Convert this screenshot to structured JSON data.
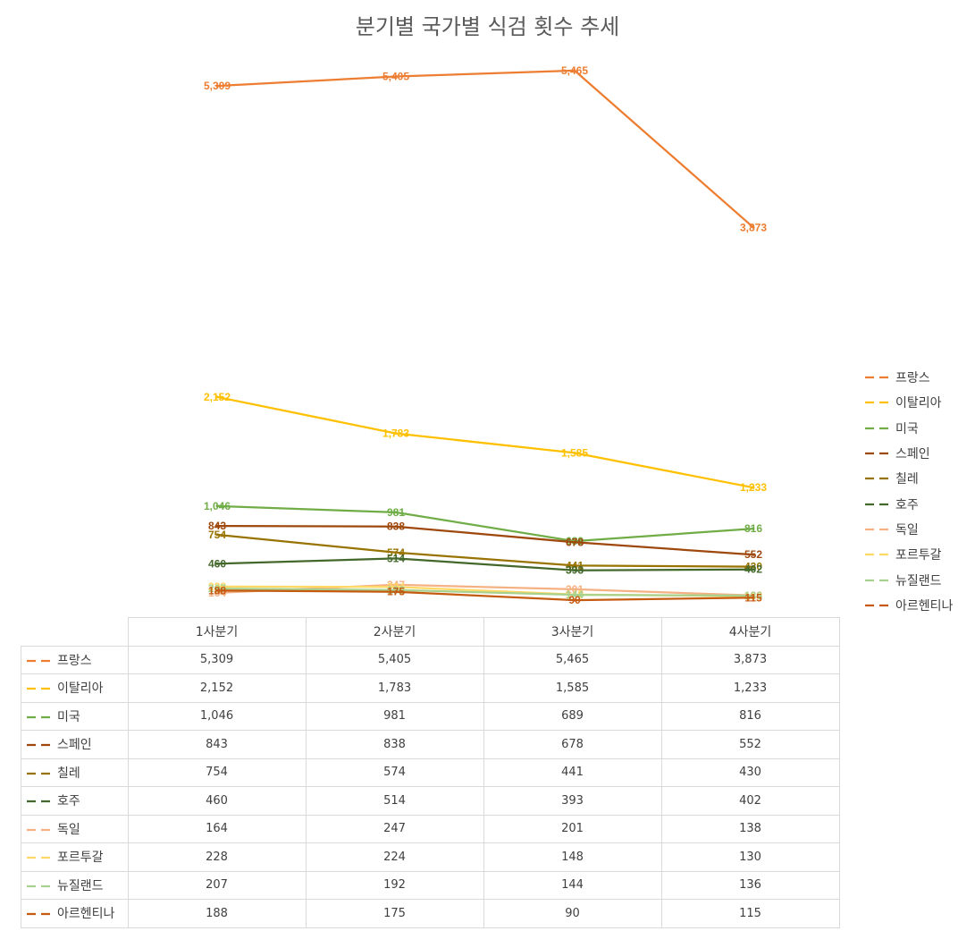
{
  "chart_data": {
    "type": "line",
    "title": "분기별 국가별 식검 횟수 추세",
    "categories": [
      "1사분기",
      "2사분기",
      "3사분기",
      "4사분기"
    ],
    "series": [
      {
        "name": "프랑스",
        "color": "#ED7D31",
        "values": [
          5309,
          5405,
          5465,
          3873
        ],
        "labels": [
          "5,309",
          "5,405",
          "5,465",
          "3,873"
        ]
      },
      {
        "name": "이탈리아",
        "color": "#FFC000",
        "values": [
          2152,
          1783,
          1585,
          1233
        ],
        "labels": [
          "2,152",
          "1,783",
          "1,585",
          "1,233"
        ]
      },
      {
        "name": "미국",
        "color": "#70AD47",
        "values": [
          1046,
          981,
          689,
          816
        ],
        "labels": [
          "1,046",
          "981",
          "689",
          "816"
        ]
      },
      {
        "name": "스페인",
        "color": "#9E480E",
        "values": [
          843,
          838,
          678,
          552
        ],
        "labels": [
          "843",
          "838",
          "678",
          "552"
        ]
      },
      {
        "name": "칠레",
        "color": "#997300",
        "values": [
          754,
          574,
          441,
          430
        ],
        "labels": [
          "754",
          "574",
          "441",
          "430"
        ]
      },
      {
        "name": "호주",
        "color": "#43682B",
        "values": [
          460,
          514,
          393,
          402
        ],
        "labels": [
          "460",
          "514",
          "393",
          "402"
        ]
      },
      {
        "name": "독일",
        "color": "#F4B183",
        "values": [
          164,
          247,
          201,
          138
        ],
        "labels": [
          "164",
          "247",
          "201",
          "138"
        ]
      },
      {
        "name": "포르투갈",
        "color": "#FFD966",
        "values": [
          228,
          224,
          148,
          130
        ],
        "labels": [
          "228",
          "224",
          "148",
          "130"
        ]
      },
      {
        "name": "뉴질랜드",
        "color": "#A9D18E",
        "values": [
          207,
          192,
          144,
          136
        ],
        "labels": [
          "207",
          "192",
          "144",
          "136"
        ]
      },
      {
        "name": "아르헨티나",
        "color": "#C55A11",
        "values": [
          188,
          175,
          90,
          115
        ],
        "labels": [
          "188",
          "175",
          "90",
          "115"
        ]
      }
    ],
    "ylim": [
      0,
      5800
    ],
    "grid": false,
    "legend": "right",
    "data_table": true
  }
}
